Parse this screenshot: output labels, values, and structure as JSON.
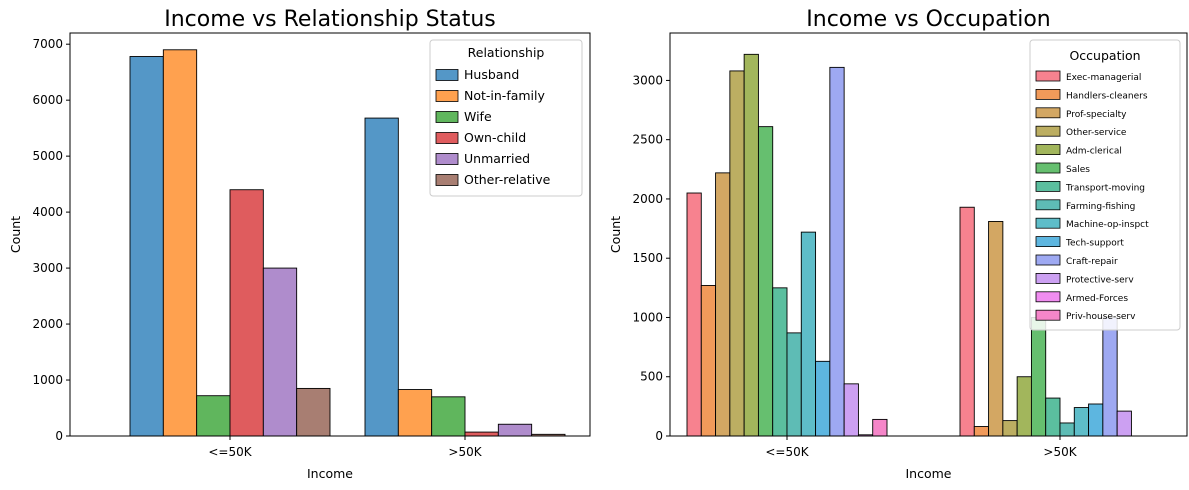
{
  "chart_data": [
    {
      "type": "bar",
      "title": "Income vs Relationship Status",
      "xlabel": "Income",
      "ylabel": "Count",
      "categories": [
        "<=50K",
        ">50K"
      ],
      "ylim": [
        0,
        7200
      ],
      "yticks": [
        0,
        1000,
        2000,
        3000,
        4000,
        5000,
        6000,
        7000
      ],
      "legend": {
        "title": "Relationship",
        "placement": "top-right"
      },
      "series": [
        {
          "name": " Husband",
          "color": "#5497c7",
          "values": [
            6780,
            5680
          ]
        },
        {
          "name": " Not-in-family",
          "color": "#ffa14f",
          "values": [
            6900,
            830
          ]
        },
        {
          "name": " Wife",
          "color": "#60b65d",
          "values": [
            720,
            700
          ]
        },
        {
          "name": " Own-child",
          "color": "#df5c5e",
          "values": [
            4400,
            70
          ]
        },
        {
          "name": " Unmarried",
          "color": "#af8ccc",
          "values": [
            3000,
            210
          ]
        },
        {
          "name": " Other-relative",
          "color": "#a87e72",
          "values": [
            850,
            30
          ]
        }
      ]
    },
    {
      "type": "bar",
      "title": "Income vs Occupation",
      "xlabel": "Income",
      "ylabel": "Count",
      "categories": [
        "<=50K",
        ">50K"
      ],
      "ylim": [
        0,
        3400
      ],
      "yticks": [
        0,
        500,
        1000,
        1500,
        2000,
        2500,
        3000
      ],
      "legend": {
        "title": "Occupation",
        "placement": "top-right"
      },
      "series": [
        {
          "name": " Exec-managerial",
          "color": "#f7828f",
          "values": [
            2050,
            1930
          ]
        },
        {
          "name": " Handlers-cleaners",
          "color": "#f19a5a",
          "values": [
            1270,
            80
          ]
        },
        {
          "name": " Prof-specialty",
          "color": "#d3a763",
          "values": [
            2220,
            1810
          ]
        },
        {
          "name": " Other-service",
          "color": "#bcae62",
          "values": [
            3080,
            130
          ]
        },
        {
          "name": " Adm-clerical",
          "color": "#a2b65c",
          "values": [
            3220,
            500
          ]
        },
        {
          "name": " Sales",
          "color": "#66bf6f",
          "values": [
            2610,
            1000
          ]
        },
        {
          "name": " Transport-moving",
          "color": "#5bbf9f",
          "values": [
            1250,
            320
          ]
        },
        {
          "name": " Farming-fishing",
          "color": "#5ebcb5",
          "values": [
            870,
            110
          ]
        },
        {
          "name": " Machine-op-inspct",
          "color": "#5ebdc9",
          "values": [
            1720,
            240
          ]
        },
        {
          "name": " Tech-support",
          "color": "#5db6e0",
          "values": [
            630,
            270
          ]
        },
        {
          "name": " Craft-repair",
          "color": "#9ea9f2",
          "values": [
            3110,
            1000
          ]
        },
        {
          "name": " Protective-serv",
          "color": "#cca0f2",
          "values": [
            440,
            210
          ]
        },
        {
          "name": " Armed-Forces",
          "color": "#f08df0",
          "values": [
            10,
            0
          ]
        },
        {
          "name": " Priv-house-serv",
          "color": "#f586c9",
          "values": [
            140,
            0
          ]
        }
      ]
    }
  ]
}
